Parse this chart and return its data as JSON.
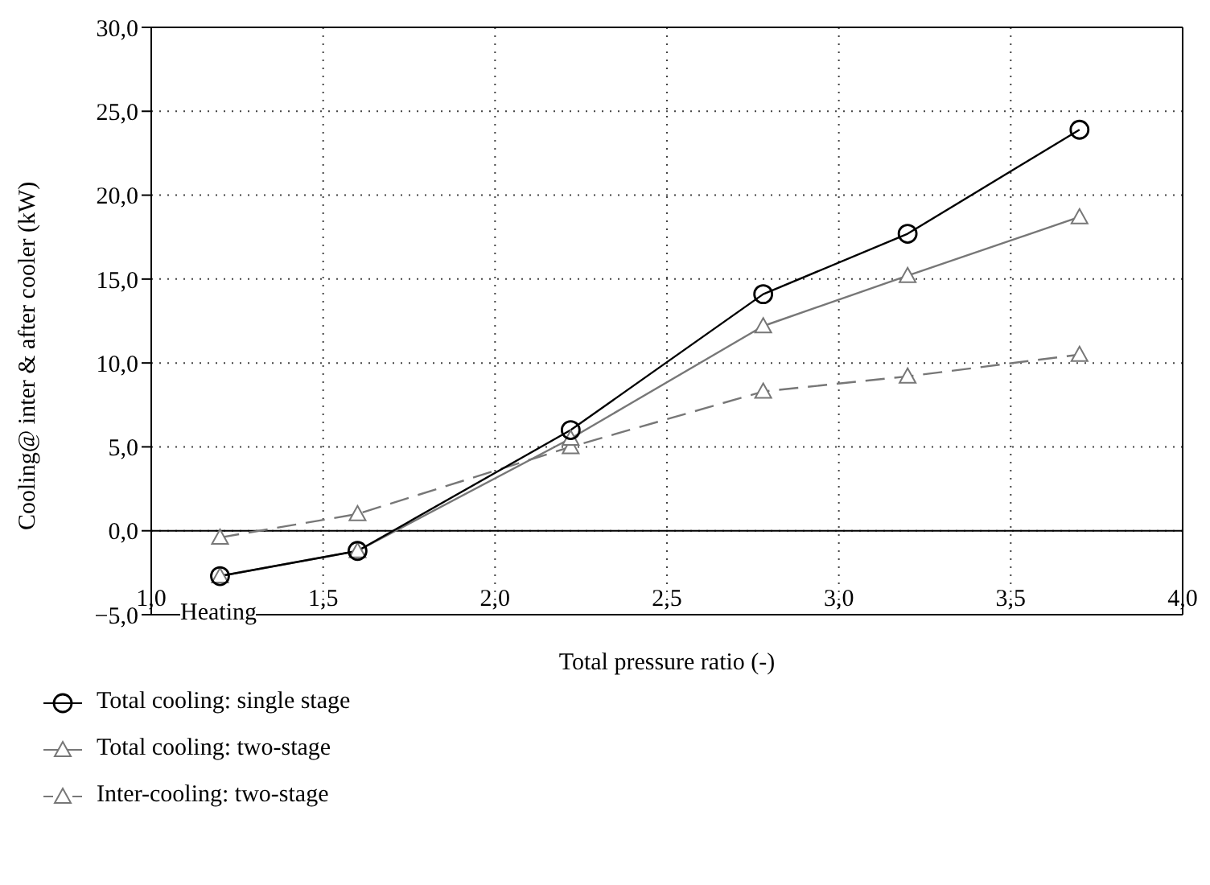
{
  "chart_data": {
    "type": "line",
    "xlabel": "Total pressure ratio (-)",
    "ylabel": "Cooling@ inter & after cooler (kW)",
    "xlim": [
      1.0,
      4.0
    ],
    "xticks": [
      {
        "value": 1.0,
        "label": "1,0"
      },
      {
        "value": 1.5,
        "label": "1,5"
      },
      {
        "value": 2.0,
        "label": "2,0"
      },
      {
        "value": 2.5,
        "label": "2,5"
      },
      {
        "value": 3.0,
        "label": "3,0"
      },
      {
        "value": 3.5,
        "label": "3,5"
      },
      {
        "value": 4.0,
        "label": "4,0"
      }
    ],
    "ylim": [
      -5,
      30
    ],
    "yticks": [
      {
        "value": -5,
        "label": "−5,0"
      },
      {
        "value": 0,
        "label": "0,0"
      },
      {
        "value": 5,
        "label": "5,0"
      },
      {
        "value": 10,
        "label": "10,0"
      },
      {
        "value": 15,
        "label": "15,0"
      },
      {
        "value": 20,
        "label": "20,0"
      },
      {
        "value": 25,
        "label": "25,0"
      },
      {
        "value": 30,
        "label": "30,0"
      }
    ],
    "x": [
      1.2,
      1.6,
      2.22,
      2.78,
      3.2,
      3.7
    ],
    "series": [
      {
        "name": "Total cooling: single stage",
        "color": "#000000",
        "marker": "circle",
        "line_style": "solid",
        "values": [
          -2.7,
          -1.2,
          6.0,
          14.1,
          17.7,
          23.9
        ]
      },
      {
        "name": "Total cooling: two-stage",
        "color": "#777777",
        "marker": "triangle",
        "line_style": "solid",
        "values": [
          -2.7,
          -1.2,
          5.5,
          12.2,
          15.2,
          18.7
        ]
      },
      {
        "name": "Inter-cooling: two-stage",
        "color": "#777777",
        "marker": "triangle",
        "line_style": "dashed",
        "values": [
          -0.4,
          1.0,
          5.0,
          8.3,
          9.2,
          10.5
        ]
      }
    ],
    "ref_lines": [
      {
        "axis": "y",
        "value": 0,
        "color": "#000000"
      }
    ],
    "annotations": [
      "Heating"
    ],
    "grid": true,
    "legend": "bottom left"
  }
}
